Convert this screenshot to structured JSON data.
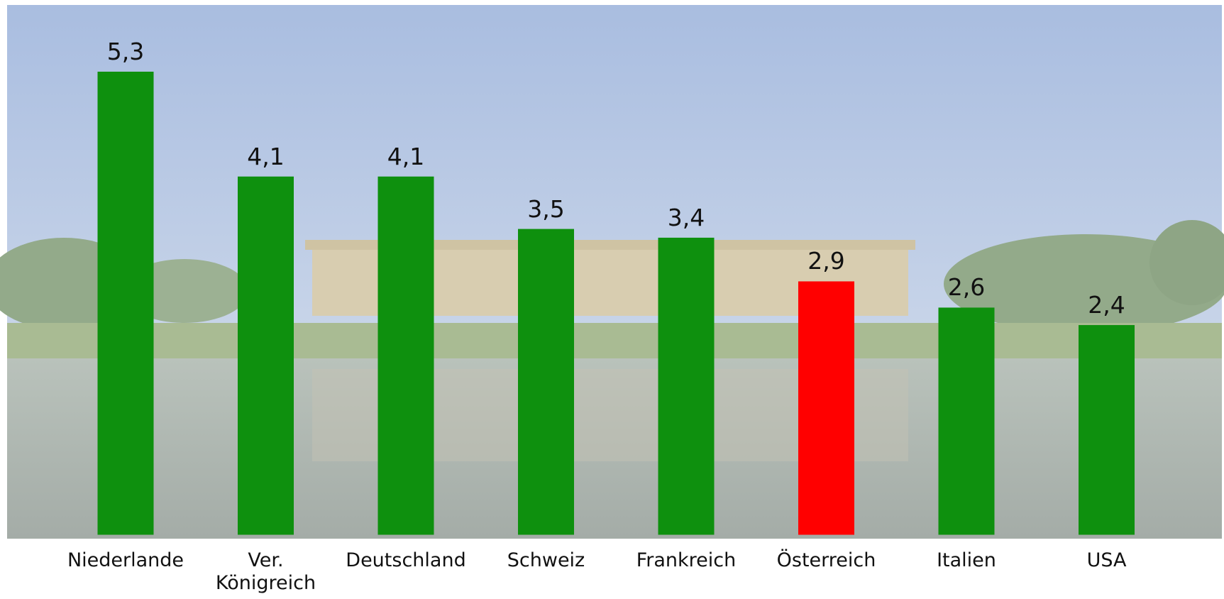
{
  "chart_data": {
    "type": "bar",
    "categories": [
      "Niederlande",
      "Ver. Königreich",
      "Deutschland",
      "Schweiz",
      "Frankreich",
      "Österreich",
      "Italien",
      "USA"
    ],
    "values": [
      5.3,
      4.1,
      4.1,
      3.5,
      3.4,
      2.9,
      2.6,
      2.4
    ],
    "value_labels": [
      "5,3",
      "4,1",
      "4,1",
      "3,5",
      "3,4",
      "2,9",
      "2,6",
      "2,4"
    ],
    "colors": [
      "#0e900e",
      "#0e900e",
      "#0e900e",
      "#0e900e",
      "#0e900e",
      "#ff0000",
      "#0e900e",
      "#0e900e"
    ]
  }
}
